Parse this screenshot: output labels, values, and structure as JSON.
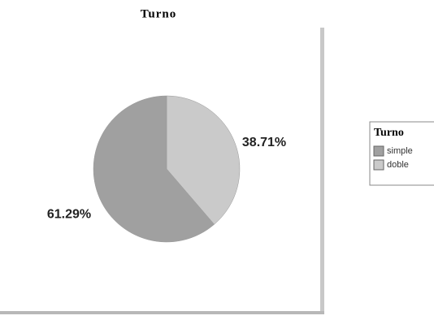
{
  "chart_data": {
    "type": "pie",
    "title": "Turno",
    "categories": [
      "simple",
      "doble"
    ],
    "values": [
      61.29,
      38.71
    ],
    "value_labels": [
      "61.29%",
      "38.71%"
    ],
    "colors": [
      "#a0a0a0",
      "#cacaca"
    ],
    "legend_title": "Turno",
    "legend": "right"
  }
}
